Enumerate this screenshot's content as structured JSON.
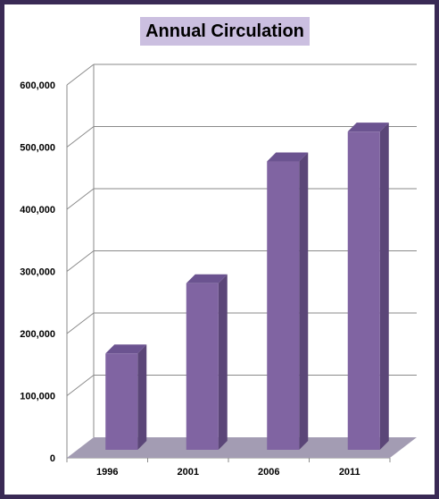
{
  "chart_data": {
    "type": "bar",
    "title": "Annual Circulation",
    "xlabel": "",
    "ylabel": "",
    "categories": [
      "1996",
      "2001",
      "2006",
      "2011"
    ],
    "values": [
      155000,
      268000,
      464000,
      512000
    ],
    "ylim": [
      0,
      600000
    ],
    "yticks": [
      "0",
      "100,000",
      "200,000",
      "300,000",
      "400,000",
      "500,000",
      "600,000"
    ],
    "grid": true,
    "legend": "none",
    "colors": {
      "bar_front": "#8064a2",
      "bar_side": "#5b4678",
      "bar_top": "#6b5390",
      "floor": "#a39cb3",
      "frame": "#3a2a55",
      "title_bg": "#cbbfe0"
    }
  }
}
